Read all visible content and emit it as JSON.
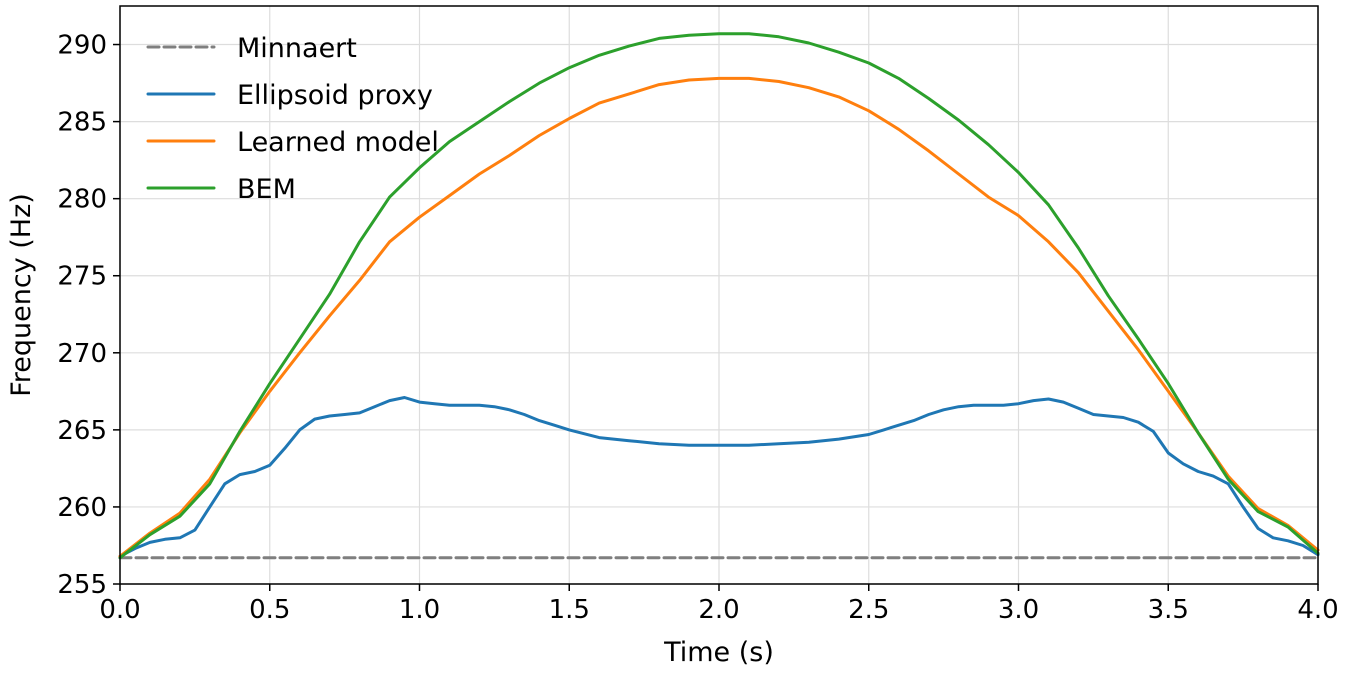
{
  "chart_data": {
    "type": "line",
    "title": "",
    "xlabel": "Time (s)",
    "ylabel": "Frequency (Hz)",
    "xlim": [
      0.0,
      4.0
    ],
    "ylim": [
      255,
      292.5
    ],
    "xticks": [
      "0.0",
      "0.5",
      "1.0",
      "1.5",
      "2.0",
      "2.5",
      "3.0",
      "3.5",
      "4.0"
    ],
    "yticks": [
      "255",
      "260",
      "265",
      "270",
      "275",
      "280",
      "285",
      "290"
    ],
    "grid": true,
    "legend_position": "top-left",
    "series": [
      {
        "name": "Minnaert",
        "color": "#7f7f7f",
        "dash": "dashed",
        "x": [
          0.0,
          4.0
        ],
        "y": [
          256.7,
          256.7
        ]
      },
      {
        "name": "Ellipsoid proxy",
        "color": "#1f77b4",
        "dash": "solid",
        "x": [
          0.0,
          0.05,
          0.1,
          0.15,
          0.2,
          0.25,
          0.3,
          0.35,
          0.4,
          0.45,
          0.5,
          0.55,
          0.6,
          0.65,
          0.7,
          0.75,
          0.8,
          0.85,
          0.9,
          0.95,
          1.0,
          1.05,
          1.1,
          1.15,
          1.2,
          1.25,
          1.3,
          1.35,
          1.4,
          1.45,
          1.5,
          1.6,
          1.7,
          1.8,
          1.9,
          2.0,
          2.1,
          2.2,
          2.3,
          2.4,
          2.5,
          2.55,
          2.6,
          2.65,
          2.7,
          2.75,
          2.8,
          2.85,
          2.9,
          2.95,
          3.0,
          3.05,
          3.1,
          3.15,
          3.2,
          3.25,
          3.3,
          3.35,
          3.4,
          3.45,
          3.5,
          3.55,
          3.6,
          3.65,
          3.7,
          3.75,
          3.8,
          3.85,
          3.9,
          3.95,
          4.0
        ],
        "y": [
          256.8,
          257.3,
          257.7,
          257.9,
          258.0,
          258.5,
          260.0,
          261.5,
          262.1,
          262.3,
          262.7,
          263.8,
          265.0,
          265.7,
          265.9,
          266.0,
          266.1,
          266.5,
          266.9,
          267.1,
          266.8,
          266.7,
          266.6,
          266.6,
          266.6,
          266.5,
          266.3,
          266.0,
          265.6,
          265.3,
          265.0,
          264.5,
          264.3,
          264.1,
          264.0,
          264.0,
          264.0,
          264.1,
          264.2,
          264.4,
          264.7,
          265.0,
          265.3,
          265.6,
          266.0,
          266.3,
          266.5,
          266.6,
          266.6,
          266.6,
          266.7,
          266.9,
          267.0,
          266.8,
          266.4,
          266.0,
          265.9,
          265.8,
          265.5,
          264.9,
          263.5,
          262.8,
          262.3,
          262.0,
          261.5,
          260.0,
          258.6,
          258.0,
          257.8,
          257.5,
          256.9
        ]
      },
      {
        "name": "Learned model",
        "color": "#ff7f0e",
        "dash": "solid",
        "x": [
          0.0,
          0.1,
          0.2,
          0.3,
          0.4,
          0.5,
          0.6,
          0.7,
          0.8,
          0.9,
          1.0,
          1.1,
          1.2,
          1.3,
          1.4,
          1.5,
          1.6,
          1.7,
          1.8,
          1.9,
          2.0,
          2.1,
          2.2,
          2.3,
          2.4,
          2.5,
          2.6,
          2.7,
          2.8,
          2.9,
          3.0,
          3.1,
          3.2,
          3.3,
          3.4,
          3.5,
          3.6,
          3.7,
          3.8,
          3.9,
          4.0
        ],
        "y": [
          256.8,
          258.3,
          259.6,
          261.8,
          264.8,
          267.5,
          270.0,
          272.4,
          274.7,
          277.2,
          278.8,
          280.2,
          281.6,
          282.8,
          284.1,
          285.2,
          286.2,
          286.8,
          287.4,
          287.7,
          287.8,
          287.8,
          287.6,
          287.2,
          286.6,
          285.7,
          284.5,
          283.1,
          281.6,
          280.1,
          278.9,
          277.2,
          275.2,
          272.7,
          270.2,
          267.5,
          264.8,
          262.0,
          259.9,
          258.8,
          257.2
        ]
      },
      {
        "name": "BEM",
        "color": "#2ca02c",
        "dash": "solid",
        "x": [
          0.0,
          0.1,
          0.2,
          0.3,
          0.4,
          0.5,
          0.6,
          0.7,
          0.8,
          0.9,
          1.0,
          1.1,
          1.2,
          1.3,
          1.4,
          1.5,
          1.6,
          1.7,
          1.8,
          1.9,
          2.0,
          2.1,
          2.2,
          2.3,
          2.4,
          2.5,
          2.6,
          2.7,
          2.8,
          2.9,
          3.0,
          3.1,
          3.2,
          3.3,
          3.4,
          3.5,
          3.6,
          3.7,
          3.8,
          3.9,
          4.0
        ],
        "y": [
          256.7,
          258.2,
          259.4,
          261.5,
          264.9,
          268.0,
          270.9,
          273.8,
          277.2,
          280.1,
          282.0,
          283.7,
          285.0,
          286.3,
          287.5,
          288.5,
          289.3,
          289.9,
          290.4,
          290.6,
          290.7,
          290.7,
          290.5,
          290.1,
          289.5,
          288.8,
          287.8,
          286.5,
          285.1,
          283.5,
          281.7,
          279.6,
          276.8,
          273.7,
          270.9,
          268.0,
          264.8,
          261.8,
          259.7,
          258.7,
          257.0
        ]
      }
    ]
  }
}
